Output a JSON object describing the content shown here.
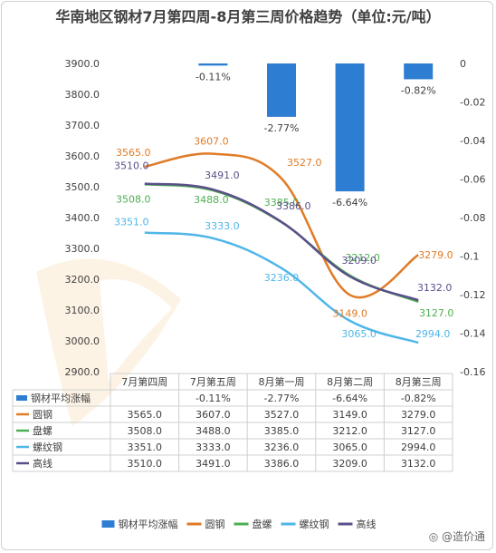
{
  "title": "华南地区钢材7月第四周-8月第三周价格趋势（单位:元/吨）",
  "colors": {
    "bar": "#2d7dd2",
    "圆钢": "#e07b26",
    "盘螺": "#4caf50",
    "螺纹钢": "#4fb6e8",
    "高线": "#5b4f8a"
  },
  "watermark_text": "造价通",
  "chart_data": {
    "type": "bar+line",
    "categories": [
      "7月第四周",
      "7月第五周",
      "8月第一周",
      "8月第二周",
      "8月第三周"
    ],
    "bar_series": {
      "name": "钢材平均涨幅",
      "values": [
        null,
        -0.11,
        -2.77,
        -6.64,
        -0.82
      ],
      "labels": [
        "",
        "-0.11%",
        "-2.77%",
        "-6.64%",
        "-0.82%"
      ]
    },
    "series": [
      {
        "name": "圆钢",
        "values": [
          3565.0,
          3607.0,
          3527.0,
          3149.0,
          3279.0
        ]
      },
      {
        "name": "盘螺",
        "values": [
          3508.0,
          3488.0,
          3385.0,
          3212.0,
          3127.0
        ]
      },
      {
        "name": "螺纹钢",
        "values": [
          3351.0,
          3333.0,
          3236.0,
          3065.0,
          2994.0
        ]
      },
      {
        "name": "高线",
        "values": [
          3510.0,
          3491.0,
          3386.0,
          3209.0,
          3132.0
        ]
      }
    ],
    "ylim_left": [
      2900,
      3900
    ],
    "yticks_left": [
      "3900.0",
      "3800.0",
      "3700.0",
      "3600.0",
      "3500.0",
      "3400.0",
      "3300.0",
      "3200.0",
      "3100.0",
      "3000.0",
      "2900.0"
    ],
    "ylim_right": [
      -0.16,
      0
    ],
    "yticks_right": [
      "0",
      "-0.02",
      "-0.04",
      "-0.06",
      "-0.08",
      "-0.1",
      "-0.12",
      "-0.14",
      "-0.16"
    ],
    "legend_position": "bottom",
    "data_table": true,
    "grid": false
  }
}
